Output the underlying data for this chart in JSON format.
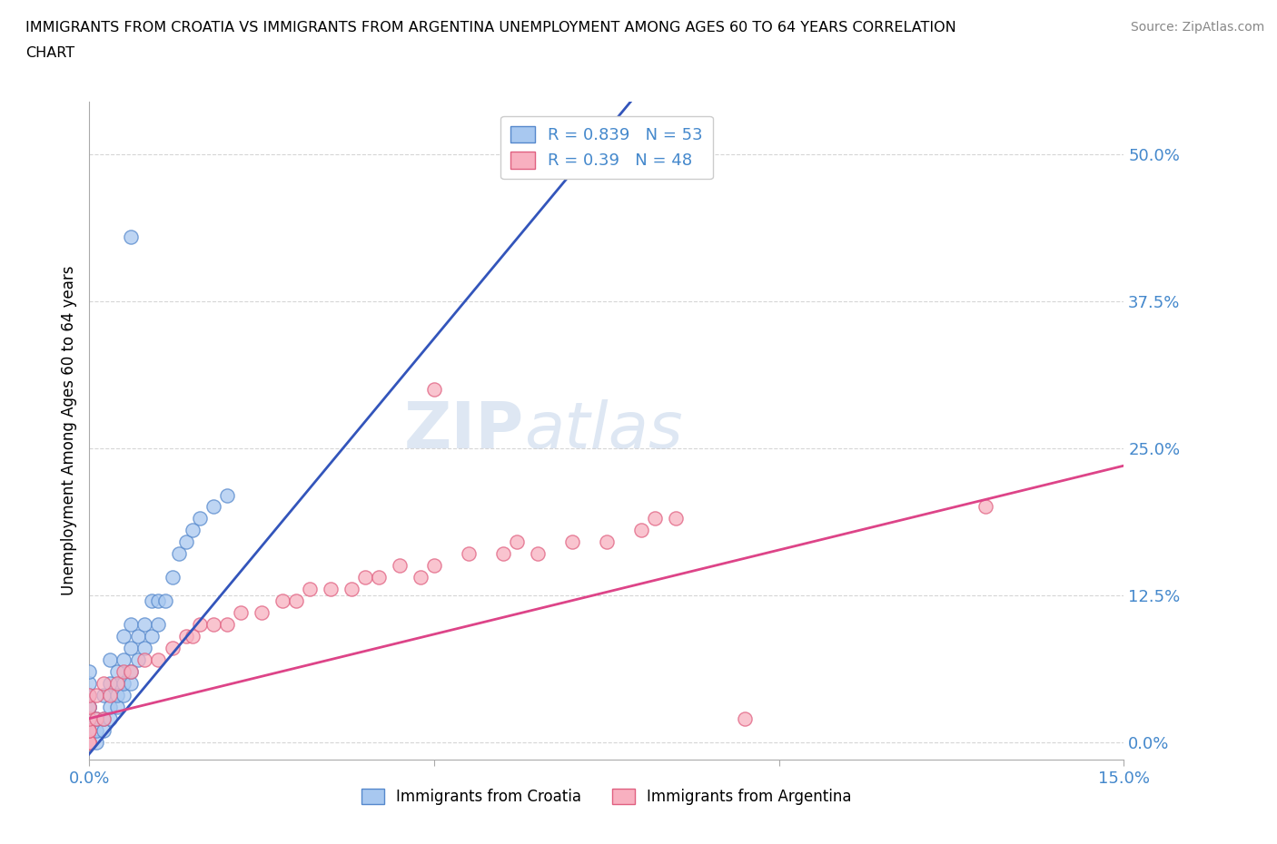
{
  "title_line1": "IMMIGRANTS FROM CROATIA VS IMMIGRANTS FROM ARGENTINA UNEMPLOYMENT AMONG AGES 60 TO 64 YEARS CORRELATION",
  "title_line2": "CHART",
  "source": "Source: ZipAtlas.com",
  "ylabel": "Unemployment Among Ages 60 to 64 years",
  "xlim": [
    0.0,
    0.15
  ],
  "ylim": [
    -0.015,
    0.545
  ],
  "yticks": [
    0.0,
    0.125,
    0.25,
    0.375,
    0.5
  ],
  "yticklabels": [
    "0.0%",
    "12.5%",
    "25.0%",
    "37.5%",
    "50.0%"
  ],
  "xticks": [
    0.0,
    0.05,
    0.1,
    0.15
  ],
  "xticklabels": [
    "0.0%",
    "",
    "",
    "15.0%"
  ],
  "croatia_color": "#a8c8f0",
  "croatia_edge": "#5588cc",
  "argentina_color": "#f8b0c0",
  "argentina_edge": "#e06080",
  "croatia_R": 0.839,
  "croatia_N": 53,
  "argentina_R": 0.39,
  "argentina_N": 48,
  "trendline_croatia_color": "#3355bb",
  "trendline_argentina_color": "#dd4488",
  "watermark_zip": "ZIP",
  "watermark_atlas": "atlas",
  "background_color": "#ffffff",
  "grid_color": "#cccccc",
  "legend_label_croatia": "Immigrants from Croatia",
  "legend_label_argentina": "Immigrants from Argentina",
  "tick_color": "#4488cc",
  "croatia_scatter_x": [
    0.0,
    0.0,
    0.0,
    0.0,
    0.0,
    0.0,
    0.0,
    0.0,
    0.0,
    0.0,
    0.0,
    0.0,
    0.0,
    0.0,
    0.0,
    0.001,
    0.001,
    0.001,
    0.002,
    0.002,
    0.002,
    0.003,
    0.003,
    0.003,
    0.003,
    0.004,
    0.004,
    0.004,
    0.005,
    0.005,
    0.005,
    0.005,
    0.006,
    0.006,
    0.006,
    0.006,
    0.007,
    0.007,
    0.008,
    0.008,
    0.009,
    0.009,
    0.01,
    0.01,
    0.011,
    0.012,
    0.013,
    0.014,
    0.015,
    0.016,
    0.018,
    0.02,
    0.006
  ],
  "croatia_scatter_y": [
    0.0,
    0.0,
    0.0,
    0.0,
    0.0,
    0.0,
    0.01,
    0.01,
    0.02,
    0.02,
    0.03,
    0.03,
    0.04,
    0.05,
    0.06,
    0.0,
    0.01,
    0.02,
    0.01,
    0.02,
    0.04,
    0.02,
    0.03,
    0.05,
    0.07,
    0.03,
    0.04,
    0.06,
    0.04,
    0.05,
    0.07,
    0.09,
    0.05,
    0.06,
    0.08,
    0.1,
    0.07,
    0.09,
    0.08,
    0.1,
    0.09,
    0.12,
    0.1,
    0.12,
    0.12,
    0.14,
    0.16,
    0.17,
    0.18,
    0.19,
    0.2,
    0.21,
    0.43
  ],
  "argentina_scatter_x": [
    0.0,
    0.0,
    0.0,
    0.0,
    0.0,
    0.0,
    0.0,
    0.0,
    0.001,
    0.001,
    0.002,
    0.002,
    0.003,
    0.004,
    0.005,
    0.006,
    0.008,
    0.01,
    0.012,
    0.014,
    0.015,
    0.016,
    0.018,
    0.02,
    0.022,
    0.025,
    0.028,
    0.03,
    0.032,
    0.035,
    0.038,
    0.04,
    0.042,
    0.045,
    0.048,
    0.05,
    0.05,
    0.055,
    0.06,
    0.062,
    0.065,
    0.07,
    0.075,
    0.08,
    0.082,
    0.085,
    0.095,
    0.13
  ],
  "argentina_scatter_y": [
    0.0,
    0.0,
    0.0,
    0.01,
    0.01,
    0.02,
    0.03,
    0.04,
    0.02,
    0.04,
    0.02,
    0.05,
    0.04,
    0.05,
    0.06,
    0.06,
    0.07,
    0.07,
    0.08,
    0.09,
    0.09,
    0.1,
    0.1,
    0.1,
    0.11,
    0.11,
    0.12,
    0.12,
    0.13,
    0.13,
    0.13,
    0.14,
    0.14,
    0.15,
    0.14,
    0.15,
    0.3,
    0.16,
    0.16,
    0.17,
    0.16,
    0.17,
    0.17,
    0.18,
    0.19,
    0.19,
    0.02,
    0.2
  ],
  "croatia_trend_x0": 0.0,
  "croatia_trend_y0": -0.01,
  "croatia_trend_x1": 0.075,
  "croatia_trend_y1": 0.52,
  "argentina_trend_x0": 0.0,
  "argentina_trend_y0": 0.02,
  "argentina_trend_x1": 0.15,
  "argentina_trend_y1": 0.235
}
